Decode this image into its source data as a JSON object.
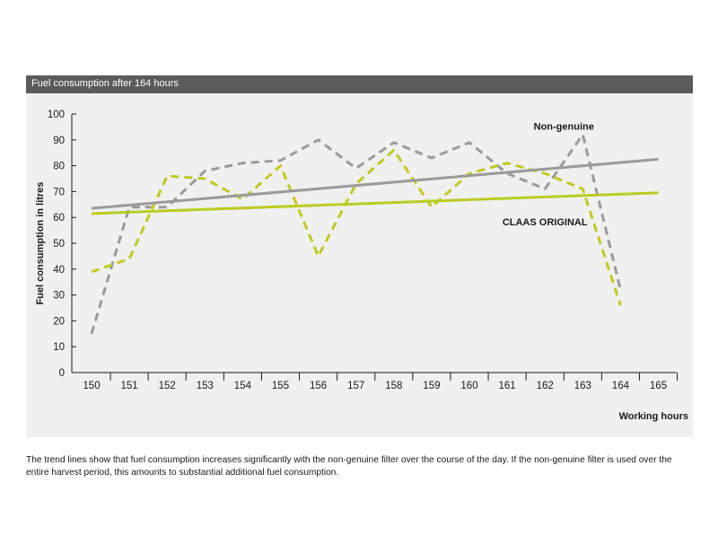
{
  "header": {
    "title": "Fuel consumption after 164 hours"
  },
  "chart_data": {
    "type": "line",
    "ylabel": "Fuel consumption in litres",
    "xlabel": "Working hours",
    "x": [
      150,
      151,
      152,
      153,
      154,
      155,
      156,
      157,
      158,
      159,
      160,
      161,
      162,
      163,
      164,
      165
    ],
    "ylim": [
      0,
      100
    ],
    "yticks": [
      0,
      10,
      20,
      30,
      40,
      50,
      60,
      70,
      80,
      90,
      100
    ],
    "grid": false,
    "series": [
      {
        "name": "Non-genuine",
        "style": "dashed",
        "color": "#9a9a9a",
        "x": [
          150,
          151,
          152,
          153,
          154,
          155,
          156,
          157,
          158,
          159,
          160,
          161,
          162,
          163,
          164
        ],
        "values": [
          15,
          64,
          64,
          78,
          81,
          82,
          90,
          79,
          89,
          83,
          89,
          77,
          71,
          92,
          32
        ]
      },
      {
        "name": "CLAAS ORIGINAL",
        "style": "dashed",
        "color": "#bccb22",
        "x": [
          150,
          151,
          152,
          153,
          154,
          155,
          156,
          157,
          158,
          159,
          160,
          161,
          162,
          163,
          164
        ],
        "values": [
          39,
          44,
          76,
          75,
          67,
          80,
          45,
          73,
          86,
          64,
          77,
          81,
          77,
          71,
          26
        ]
      },
      {
        "name": "Non-genuine trend",
        "style": "solid",
        "color": "#9a9a9a",
        "x": [
          150,
          165
        ],
        "values": [
          63.5,
          82.5
        ]
      },
      {
        "name": "CLAAS ORIGINAL trend",
        "style": "solid",
        "color": "#bccb22",
        "x": [
          150,
          165
        ],
        "values": [
          61.5,
          69.5
        ]
      }
    ],
    "annotations": [
      {
        "text": "Non-genuine",
        "x": 162.5,
        "y": 94
      },
      {
        "text": "CLAAS ORIGINAL",
        "x": 162.0,
        "y": 57
      }
    ]
  },
  "caption": "The trend lines show that fuel consumption increases significantly with the non-genuine filter over the course of the day. If the non-genuine filter is used over the entire harvest period, this amounts to substantial additional fuel consumption."
}
